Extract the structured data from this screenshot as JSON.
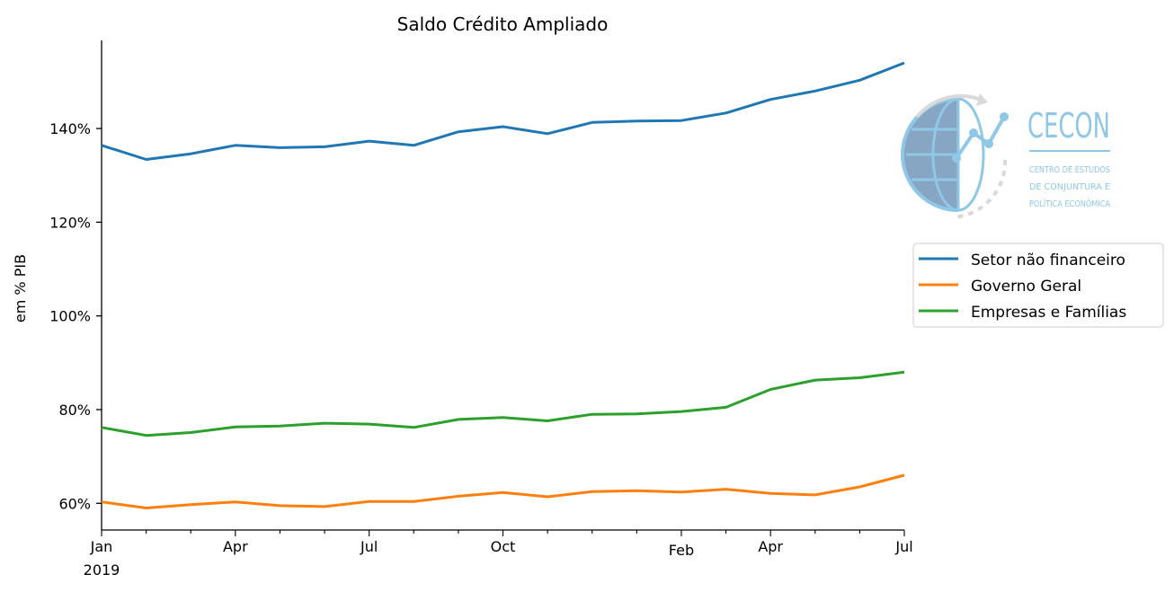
{
  "chart_data": {
    "type": "line",
    "title": "Saldo Crédito Ampliado",
    "xlabel": "",
    "ylabel": "em % PIB",
    "x": [
      "2019-01",
      "2019-02",
      "2019-03",
      "2019-04",
      "2019-05",
      "2019-06",
      "2019-07",
      "2019-08",
      "2019-09",
      "2019-10",
      "2019-11",
      "2019-12",
      "2020-01",
      "2020-02",
      "2020-03",
      "2020-04",
      "2020-05",
      "2020-06",
      "2020-07"
    ],
    "x_tick_labels": [
      {
        "x": "2019-01",
        "label": "Jan",
        "sublabel": "2019"
      },
      {
        "x": "2019-04",
        "label": "Apr"
      },
      {
        "x": "2019-07",
        "label": "Jul"
      },
      {
        "x": "2019-10",
        "label": "Oct"
      },
      {
        "x": "2020-02",
        "label": "Feb"
      },
      {
        "x": "2020-04",
        "label": "Apr"
      },
      {
        "x": "2020-07",
        "label": "Jul"
      }
    ],
    "y_ticks": [
      60,
      80,
      100,
      120,
      140
    ],
    "y_tick_labels": [
      "60%",
      "80%",
      "100%",
      "120%",
      "140%"
    ],
    "ylim": [
      54.3,
      158.8
    ],
    "grid": false,
    "legend_position": "center-right",
    "series": [
      {
        "name": "Setor não financeiro",
        "color": "#1f77b4",
        "values": [
          136.4,
          133.4,
          134.6,
          136.4,
          135.9,
          136.1,
          137.3,
          136.4,
          139.3,
          140.4,
          138.9,
          141.3,
          141.6,
          141.7,
          143.3,
          146.2,
          148.0,
          150.3,
          154.0
        ]
      },
      {
        "name": "Governo Geral",
        "color": "#ff7f0e",
        "values": [
          60.3,
          59.0,
          59.7,
          60.3,
          59.5,
          59.3,
          60.4,
          60.4,
          61.5,
          62.3,
          61.4,
          62.5,
          62.7,
          62.4,
          63.0,
          62.1,
          61.8,
          63.5,
          66.0
        ]
      },
      {
        "name": "Empresas e Famílias",
        "color": "#2ca02c",
        "values": [
          76.2,
          74.5,
          75.1,
          76.3,
          76.5,
          77.1,
          76.9,
          76.2,
          77.9,
          78.3,
          77.6,
          79.0,
          79.1,
          79.6,
          80.5,
          84.3,
          86.3,
          86.8,
          88.0
        ]
      }
    ]
  },
  "logo": {
    "name": "CECON",
    "subtitle_lines": [
      "CENTRO DE ESTUDOS",
      "DE CONJUNTURA E",
      "POLÍTICA ECONÔMICA"
    ]
  }
}
